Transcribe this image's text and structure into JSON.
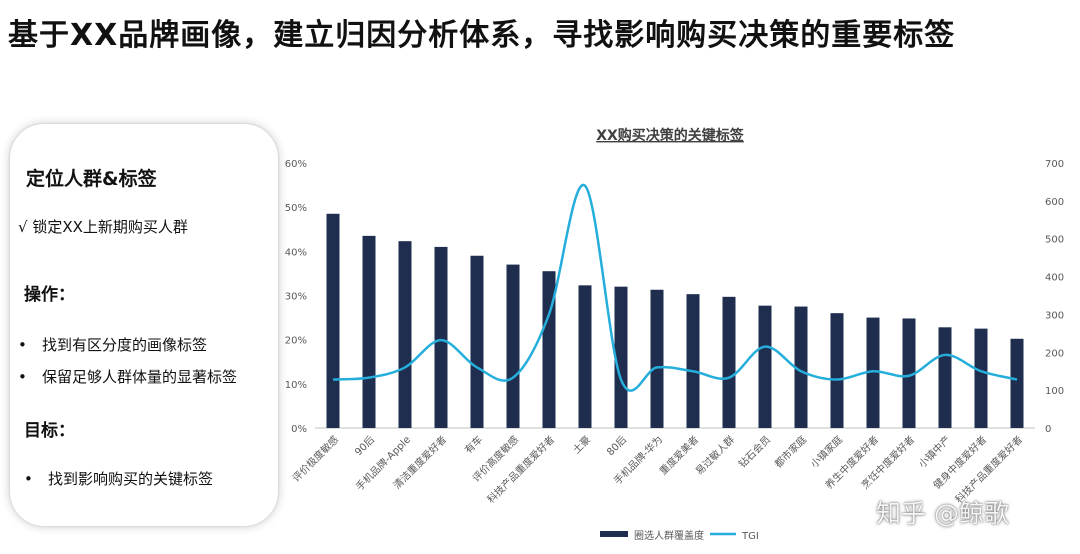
{
  "title": "基于XX品牌画像，建立归因分析体系，寻找影响购买决策的重要标签",
  "side_panel": {
    "heading": "定位人群&标签",
    "check_item": "√ 锁定XX上新期购买人群",
    "section1_label": "操作：",
    "section1_items": [
      "找到有区分度的画像标签",
      "保留足够人群体量的显著标签"
    ],
    "section2_label": "目标：",
    "section2_items": [
      "找到影响购买的关键标签"
    ]
  },
  "bullet_glyph": "•",
  "watermark": "知乎 @鲸歌",
  "colors": {
    "bar": "#1F2D4E",
    "line": "#25AEDB",
    "axis_text": "#595959",
    "grid": "#D9D9D9"
  },
  "chart_data": {
    "type": "bar",
    "title": "XX购买决策的关键标签",
    "categories": [
      "评价极度敏感",
      "90后",
      "手机品牌-Apple",
      "清洁重度爱好者",
      "有车",
      "评价高度敏感",
      "科技产品重度爱好者",
      "土豪",
      "80后",
      "手机品牌-华为",
      "重度爱美者",
      "易过敏人群",
      "钻石会员",
      "都市家庭",
      "小镇家庭",
      "养生中度爱好者",
      "烹饪中度爱好者",
      "小镇中产",
      "健身中度爱好者",
      "科技产品重度爱好者"
    ],
    "series": [
      {
        "name": "圈选人群覆盖度",
        "type": "bar",
        "axis": "left",
        "values": [
          48.5,
          43.5,
          42.3,
          41,
          39,
          37,
          35.5,
          32.3,
          32,
          31.3,
          30.3,
          29.7,
          27.7,
          27.5,
          26,
          25,
          24.8,
          22.8,
          22.5,
          20.2
        ]
      },
      {
        "name": "TGI",
        "type": "line",
        "axis": "right",
        "values": [
          128,
          133,
          160,
          232,
          160,
          133,
          300,
          640,
          128,
          160,
          150,
          133,
          215,
          150,
          128,
          150,
          138,
          193,
          150,
          128
        ]
      }
    ],
    "y_left": {
      "ticks": [
        "0%",
        "10%",
        "20%",
        "30%",
        "40%",
        "50%",
        "60%"
      ],
      "range": [
        0,
        60
      ]
    },
    "y_right": {
      "ticks": [
        "0",
        "100",
        "200",
        "300",
        "400",
        "500",
        "600",
        "700"
      ],
      "range": [
        0,
        700
      ]
    },
    "grid": false,
    "legend_position": "bottom"
  }
}
